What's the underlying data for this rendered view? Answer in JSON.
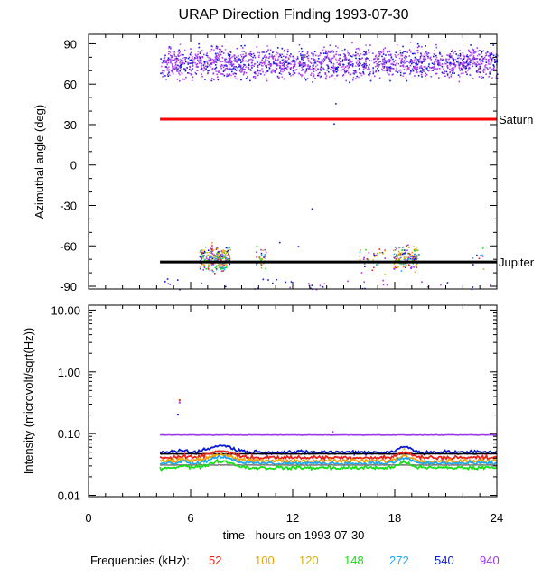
{
  "chart_data": {
    "type": "scatter",
    "title": "URAP Direction Finding  1993-07-30",
    "xlabel": "time - hours on 1993-07-30",
    "xlim": [
      0,
      24
    ],
    "x_ticks": [
      "0",
      "6",
      "12",
      "18",
      "24"
    ],
    "legend_title": "Frequencies (kHz):",
    "frequencies": [
      {
        "label": "52",
        "color": "#e8231c"
      },
      {
        "label": "100",
        "color": "#f5a000"
      },
      {
        "label": "120",
        "color": "#d6b000"
      },
      {
        "label": "148",
        "color": "#18e018"
      },
      {
        "label": "272",
        "color": "#1fa8f0"
      },
      {
        "label": "540",
        "color": "#0a1ad8"
      },
      {
        "label": "940",
        "color": "#9b38e8"
      }
    ],
    "panels": [
      {
        "ylabel": "Azimuthal angle (deg)",
        "ylim": [
          -92,
          97
        ],
        "y_ticks": [
          "90",
          "60",
          "30",
          "0",
          "-30",
          "-60",
          "-90"
        ],
        "reference_lines": [
          {
            "label": "Saturn",
            "value": 34,
            "x_start": 4.2,
            "x_end": 24,
            "color": "#ff0000"
          },
          {
            "label": "Jupiter",
            "value": -72,
            "x_start": 4.2,
            "x_end": 24,
            "color": "#000000"
          }
        ]
      },
      {
        "ylabel": "Intensity (microvolt/sqrt(Hz))",
        "yscale": "log",
        "ylim": [
          0.0095,
          12
        ],
        "y_ticks": [
          "10.00",
          "1.00",
          "0.10",
          "0.01"
        ],
        "series": [
          {
            "name": "940",
            "level": 0.095,
            "color": "#9b38e8"
          },
          {
            "name": "540",
            "level": 0.05,
            "color": "#0a1ad8"
          },
          {
            "name": "black",
            "level": 0.047,
            "color": "#000000"
          },
          {
            "name": "52",
            "level": 0.041,
            "color": "#e8231c"
          },
          {
            "name": "100",
            "level": 0.036,
            "color": "#f5a000"
          },
          {
            "name": "272",
            "level": 0.033,
            "color": "#1fa8f0"
          },
          {
            "name": "gray",
            "level": 0.031,
            "color": "#808080"
          },
          {
            "name": "148",
            "level": 0.028,
            "color": "#18e018"
          }
        ]
      }
    ]
  }
}
